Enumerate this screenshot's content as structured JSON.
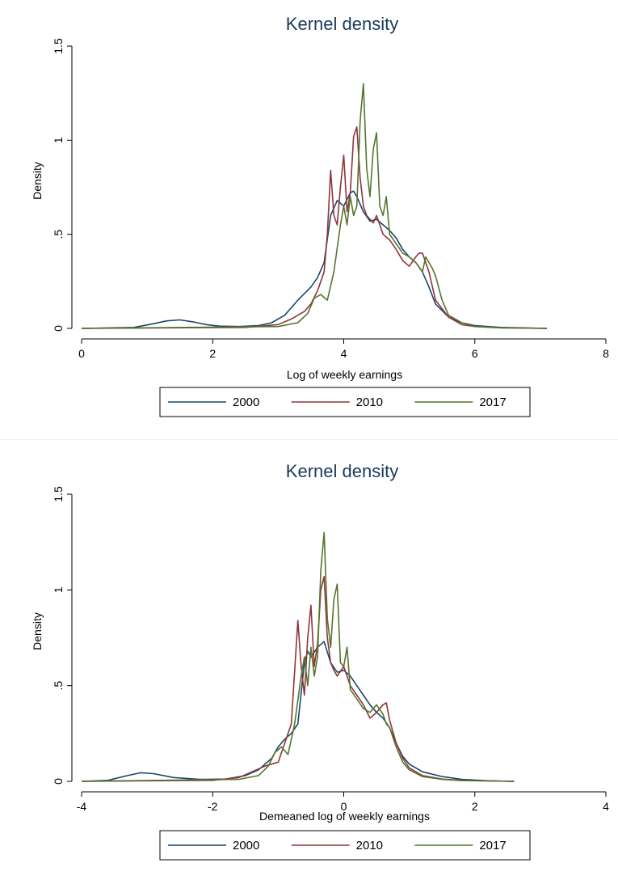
{
  "chart_data": [
    {
      "type": "line",
      "title": "Kernel density",
      "xlabel": "Log of  weekly earnings",
      "ylabel": "Density",
      "xlim": [
        0,
        8
      ],
      "ylim": [
        0,
        1.5
      ],
      "xticks": [
        0,
        2,
        4,
        6,
        8
      ],
      "xtick_labels": [
        "0",
        "2",
        "4",
        "6",
        "8"
      ],
      "yticks": [
        0,
        0.5,
        1,
        1.5
      ],
      "ytick_labels": [
        "0",
        ".5",
        "1",
        "1.5"
      ],
      "grid": false,
      "legend": "bottom",
      "series": [
        {
          "name": "2000",
          "color": "#1a476f",
          "x": [
            0,
            0.8,
            1.1,
            1.3,
            1.5,
            1.7,
            1.9,
            2.1,
            2.4,
            2.7,
            2.9,
            3.1,
            3.3,
            3.5,
            3.6,
            3.7,
            3.8,
            3.9,
            4.0,
            4.1,
            4.15,
            4.2,
            4.3,
            4.4,
            4.5,
            4.6,
            4.7,
            4.8,
            4.9,
            5.0,
            5.1,
            5.2,
            5.3,
            5.4,
            5.6,
            5.8,
            6.0,
            6.4,
            7.1
          ],
          "y": [
            0,
            0.005,
            0.025,
            0.04,
            0.045,
            0.035,
            0.02,
            0.012,
            0.01,
            0.015,
            0.03,
            0.07,
            0.15,
            0.22,
            0.27,
            0.35,
            0.6,
            0.68,
            0.65,
            0.72,
            0.73,
            0.7,
            0.62,
            0.57,
            0.58,
            0.55,
            0.52,
            0.48,
            0.42,
            0.38,
            0.35,
            0.3,
            0.22,
            0.13,
            0.06,
            0.03,
            0.015,
            0.005,
            0
          ]
        },
        {
          "name": "2010",
          "color": "#90353b",
          "x": [
            0,
            2.5,
            3.0,
            3.2,
            3.4,
            3.5,
            3.6,
            3.7,
            3.75,
            3.8,
            3.85,
            3.9,
            3.95,
            4.0,
            4.05,
            4.1,
            4.15,
            4.2,
            4.25,
            4.3,
            4.35,
            4.4,
            4.45,
            4.5,
            4.6,
            4.7,
            4.8,
            4.9,
            5.0,
            5.1,
            5.15,
            5.2,
            5.3,
            5.4,
            5.6,
            5.8,
            6.0,
            6.4,
            7.1
          ],
          "y": [
            0,
            0.005,
            0.02,
            0.05,
            0.09,
            0.13,
            0.2,
            0.3,
            0.5,
            0.84,
            0.6,
            0.55,
            0.75,
            0.92,
            0.62,
            0.72,
            1.02,
            1.07,
            0.8,
            0.65,
            0.6,
            0.58,
            0.56,
            0.6,
            0.5,
            0.47,
            0.42,
            0.36,
            0.33,
            0.38,
            0.4,
            0.4,
            0.3,
            0.15,
            0.06,
            0.02,
            0.01,
            0.003,
            0
          ]
        },
        {
          "name": "2017",
          "color": "#55752f",
          "x": [
            0,
            3.0,
            3.3,
            3.45,
            3.55,
            3.65,
            3.75,
            3.85,
            3.95,
            4.0,
            4.05,
            4.1,
            4.15,
            4.2,
            4.25,
            4.3,
            4.35,
            4.4,
            4.45,
            4.5,
            4.55,
            4.6,
            4.65,
            4.7,
            4.8,
            4.9,
            5.0,
            5.1,
            5.2,
            5.25,
            5.3,
            5.35,
            5.4,
            5.5,
            5.6,
            5.8,
            6.0,
            6.4,
            7.1
          ],
          "y": [
            0,
            0.01,
            0.03,
            0.08,
            0.16,
            0.18,
            0.15,
            0.3,
            0.55,
            0.65,
            0.55,
            0.7,
            0.6,
            0.65,
            1.1,
            1.3,
            0.85,
            0.7,
            0.95,
            1.04,
            0.65,
            0.6,
            0.7,
            0.5,
            0.45,
            0.4,
            0.38,
            0.35,
            0.3,
            0.38,
            0.35,
            0.32,
            0.28,
            0.15,
            0.07,
            0.03,
            0.01,
            0.003,
            0
          ]
        }
      ]
    },
    {
      "type": "line",
      "title": "Kernel density",
      "xlabel": "Demeaned log of weekly earnings",
      "ylabel": "Density",
      "xlim": [
        -4,
        4
      ],
      "ylim": [
        0,
        1.5
      ],
      "xticks": [
        -4,
        -2,
        0,
        2,
        4
      ],
      "xtick_labels": [
        "-4",
        "-2",
        "0",
        "2",
        "4"
      ],
      "yticks": [
        0,
        0.5,
        1,
        1.5
      ],
      "ytick_labels": [
        "0",
        ".5",
        "1",
        "1.5"
      ],
      "grid": false,
      "legend": "bottom",
      "series": [
        {
          "name": "2000",
          "color": "#1a476f",
          "x": [
            -4.0,
            -3.6,
            -3.3,
            -3.1,
            -2.9,
            -2.6,
            -2.2,
            -1.8,
            -1.5,
            -1.3,
            -1.1,
            -1.0,
            -0.9,
            -0.8,
            -0.7,
            -0.6,
            -0.55,
            -0.5,
            -0.4,
            -0.3,
            -0.2,
            -0.1,
            0,
            0.1,
            0.2,
            0.3,
            0.4,
            0.5,
            0.6,
            0.7,
            0.8,
            0.9,
            1.0,
            1.2,
            1.5,
            1.8,
            2.2,
            2.6
          ],
          "y": [
            0,
            0.005,
            0.03,
            0.045,
            0.04,
            0.02,
            0.01,
            0.012,
            0.03,
            0.06,
            0.12,
            0.18,
            0.22,
            0.25,
            0.3,
            0.62,
            0.68,
            0.65,
            0.7,
            0.73,
            0.62,
            0.57,
            0.58,
            0.55,
            0.5,
            0.45,
            0.4,
            0.36,
            0.33,
            0.28,
            0.2,
            0.13,
            0.09,
            0.05,
            0.025,
            0.01,
            0.003,
            0
          ]
        },
        {
          "name": "2010",
          "color": "#90353b",
          "x": [
            -4.0,
            -2.0,
            -1.6,
            -1.4,
            -1.2,
            -1.0,
            -0.9,
            -0.8,
            -0.7,
            -0.65,
            -0.6,
            -0.55,
            -0.5,
            -0.45,
            -0.4,
            -0.35,
            -0.3,
            -0.25,
            -0.2,
            -0.15,
            -0.1,
            0,
            0.1,
            0.2,
            0.3,
            0.4,
            0.5,
            0.6,
            0.65,
            0.7,
            0.8,
            0.9,
            1.0,
            1.2,
            1.5,
            1.8,
            2.2,
            2.6
          ],
          "y": [
            0,
            0.005,
            0.02,
            0.05,
            0.08,
            0.1,
            0.2,
            0.3,
            0.84,
            0.6,
            0.45,
            0.75,
            0.92,
            0.6,
            0.72,
            1.0,
            1.07,
            0.75,
            0.62,
            0.58,
            0.55,
            0.6,
            0.5,
            0.45,
            0.4,
            0.33,
            0.36,
            0.4,
            0.41,
            0.32,
            0.2,
            0.12,
            0.07,
            0.03,
            0.012,
            0.005,
            0.002,
            0
          ]
        },
        {
          "name": "2017",
          "color": "#55752f",
          "x": [
            -4.0,
            -1.6,
            -1.3,
            -1.15,
            -1.05,
            -0.95,
            -0.85,
            -0.75,
            -0.65,
            -0.6,
            -0.55,
            -0.5,
            -0.45,
            -0.4,
            -0.35,
            -0.3,
            -0.25,
            -0.2,
            -0.15,
            -0.1,
            -0.05,
            0,
            0.05,
            0.1,
            0.2,
            0.3,
            0.4,
            0.5,
            0.6,
            0.65,
            0.7,
            0.8,
            0.9,
            1.0,
            1.2,
            1.5,
            1.8,
            2.6
          ],
          "y": [
            0,
            0.01,
            0.03,
            0.08,
            0.15,
            0.18,
            0.14,
            0.3,
            0.55,
            0.65,
            0.5,
            0.7,
            0.55,
            0.65,
            1.1,
            1.3,
            0.85,
            0.7,
            0.95,
            1.03,
            0.62,
            0.6,
            0.7,
            0.48,
            0.43,
            0.38,
            0.36,
            0.4,
            0.35,
            0.3,
            0.28,
            0.18,
            0.1,
            0.06,
            0.025,
            0.01,
            0.004,
            0
          ]
        }
      ]
    }
  ]
}
